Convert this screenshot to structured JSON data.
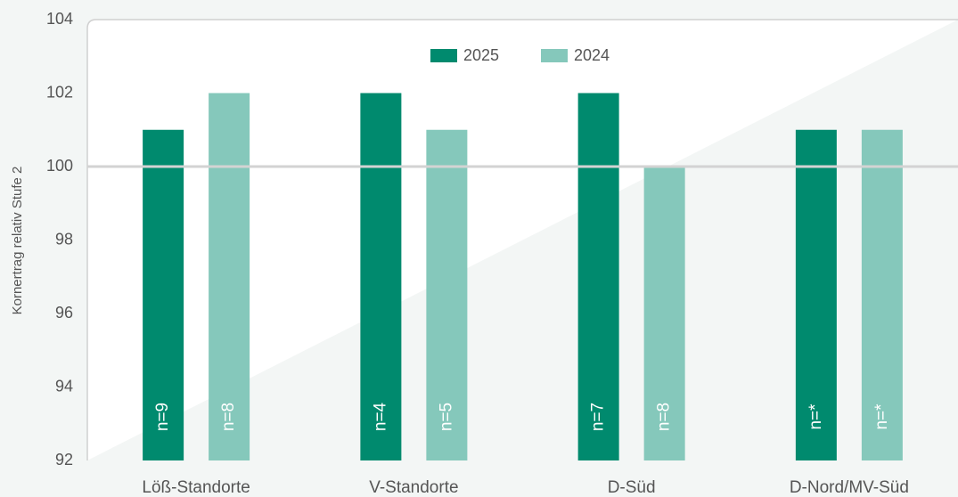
{
  "chart_data": {
    "type": "bar",
    "y_label": "Kornertrag relativ Stufe 2",
    "categories": [
      "Löß-Standorte",
      "V-Standorte",
      "D-Süd",
      "D-Nord/MV-Süd"
    ],
    "series": [
      {
        "name": "2025",
        "color": "#008a6e",
        "values": [
          101,
          102,
          102,
          101
        ],
        "bar_labels": [
          "n=9",
          "n=4",
          "n=7",
          "n=*"
        ]
      },
      {
        "name": "2024",
        "color": "#85c8bb",
        "values": [
          102,
          101,
          100,
          101
        ],
        "bar_labels": [
          "n=8",
          "n=5",
          "n=8",
          "n=*"
        ]
      }
    ],
    "ylim": [
      92,
      104
    ],
    "yticks": [
      92,
      94,
      96,
      98,
      100,
      102,
      104
    ],
    "reference_line": 100
  }
}
